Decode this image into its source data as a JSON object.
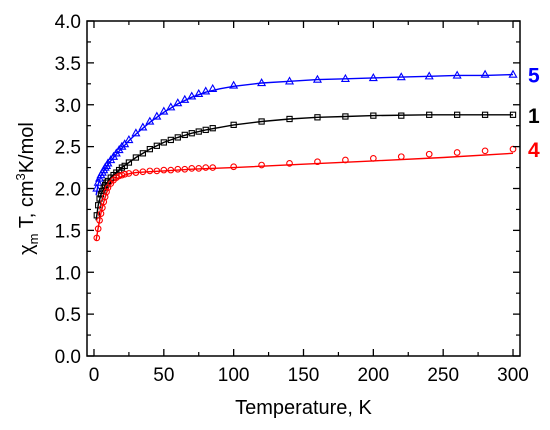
{
  "chart_data": {
    "type": "scatter",
    "xlabel": "Temperature, K",
    "ylabel": {
      "pre": "χ",
      "sub": "m",
      "mid": " T, cm",
      "sup": "3",
      "post": "K/mol"
    },
    "xlim": [
      -5,
      305
    ],
    "ylim": [
      0.0,
      4.0
    ],
    "x_ticks": [
      0,
      50,
      100,
      150,
      200,
      250,
      300
    ],
    "y_ticks": [
      "0.0",
      "0.5",
      "1.0",
      "1.5",
      "2.0",
      "2.5",
      "3.0",
      "3.5",
      "4.0"
    ],
    "grid": false,
    "series": [
      {
        "name": "5",
        "color": "#0000ff",
        "marker": "triangle",
        "points": [
          [
            2,
            2.0
          ],
          [
            3,
            2.07
          ],
          [
            4,
            2.12
          ],
          [
            5,
            2.16
          ],
          [
            6,
            2.19
          ],
          [
            7,
            2.22
          ],
          [
            8,
            2.25
          ],
          [
            9,
            2.27
          ],
          [
            10,
            2.3
          ],
          [
            12,
            2.34
          ],
          [
            14,
            2.38
          ],
          [
            16,
            2.42
          ],
          [
            18,
            2.46
          ],
          [
            20,
            2.5
          ],
          [
            22,
            2.53
          ],
          [
            25,
            2.58
          ],
          [
            30,
            2.66
          ],
          [
            35,
            2.73
          ],
          [
            40,
            2.8
          ],
          [
            45,
            2.86
          ],
          [
            50,
            2.92
          ],
          [
            55,
            2.97
          ],
          [
            60,
            3.02
          ],
          [
            65,
            3.06
          ],
          [
            70,
            3.1
          ],
          [
            75,
            3.13
          ],
          [
            80,
            3.16
          ],
          [
            85,
            3.19
          ],
          [
            100,
            3.23
          ],
          [
            120,
            3.26
          ],
          [
            140,
            3.28
          ],
          [
            160,
            3.3
          ],
          [
            180,
            3.31
          ],
          [
            200,
            3.32
          ],
          [
            220,
            3.33
          ],
          [
            240,
            3.34
          ],
          [
            260,
            3.35
          ],
          [
            280,
            3.36
          ],
          [
            300,
            3.36
          ]
        ],
        "fit": [
          [
            1.5,
            1.92
          ],
          [
            3,
            2.05
          ],
          [
            5,
            2.15
          ],
          [
            8,
            2.24
          ],
          [
            12,
            2.33
          ],
          [
            16,
            2.41
          ],
          [
            20,
            2.48
          ],
          [
            25,
            2.57
          ],
          [
            30,
            2.65
          ],
          [
            40,
            2.79
          ],
          [
            50,
            2.91
          ],
          [
            60,
            3.01
          ],
          [
            70,
            3.09
          ],
          [
            80,
            3.15
          ],
          [
            90,
            3.19
          ],
          [
            100,
            3.22
          ],
          [
            120,
            3.26
          ],
          [
            140,
            3.28
          ],
          [
            160,
            3.3
          ],
          [
            180,
            3.31
          ],
          [
            200,
            3.32
          ],
          [
            220,
            3.33
          ],
          [
            240,
            3.34
          ],
          [
            260,
            3.35
          ],
          [
            280,
            3.35
          ],
          [
            300,
            3.36
          ]
        ]
      },
      {
        "name": "1",
        "color": "#000000",
        "marker": "square",
        "points": [
          [
            2,
            1.68
          ],
          [
            3,
            1.8
          ],
          [
            4,
            1.88
          ],
          [
            5,
            1.93
          ],
          [
            6,
            1.97
          ],
          [
            7,
            2.01
          ],
          [
            8,
            2.04
          ],
          [
            9,
            2.07
          ],
          [
            10,
            2.09
          ],
          [
            12,
            2.13
          ],
          [
            14,
            2.16
          ],
          [
            16,
            2.19
          ],
          [
            18,
            2.22
          ],
          [
            20,
            2.25
          ],
          [
            22,
            2.27
          ],
          [
            25,
            2.31
          ],
          [
            30,
            2.37
          ],
          [
            35,
            2.42
          ],
          [
            40,
            2.47
          ],
          [
            45,
            2.51
          ],
          [
            50,
            2.55
          ],
          [
            55,
            2.58
          ],
          [
            60,
            2.61
          ],
          [
            65,
            2.64
          ],
          [
            70,
            2.66
          ],
          [
            75,
            2.68
          ],
          [
            80,
            2.7
          ],
          [
            85,
            2.72
          ],
          [
            100,
            2.76
          ],
          [
            120,
            2.8
          ],
          [
            140,
            2.83
          ],
          [
            160,
            2.85
          ],
          [
            180,
            2.86
          ],
          [
            200,
            2.87
          ],
          [
            220,
            2.87
          ],
          [
            240,
            2.88
          ],
          [
            260,
            2.88
          ],
          [
            280,
            2.88
          ],
          [
            300,
            2.88
          ]
        ],
        "fit": [
          [
            1.5,
            1.62
          ],
          [
            3,
            1.8
          ],
          [
            5,
            1.93
          ],
          [
            8,
            2.04
          ],
          [
            12,
            2.13
          ],
          [
            16,
            2.19
          ],
          [
            20,
            2.25
          ],
          [
            25,
            2.31
          ],
          [
            30,
            2.37
          ],
          [
            40,
            2.47
          ],
          [
            50,
            2.55
          ],
          [
            60,
            2.61
          ],
          [
            70,
            2.66
          ],
          [
            80,
            2.7
          ],
          [
            90,
            2.73
          ],
          [
            100,
            2.76
          ],
          [
            120,
            2.8
          ],
          [
            140,
            2.83
          ],
          [
            160,
            2.85
          ],
          [
            180,
            2.86
          ],
          [
            200,
            2.87
          ],
          [
            240,
            2.88
          ],
          [
            300,
            2.88
          ]
        ]
      },
      {
        "name": "4",
        "color": "#ff0000",
        "marker": "circle",
        "points": [
          [
            2,
            1.41
          ],
          [
            3,
            1.52
          ],
          [
            4,
            1.62
          ],
          [
            5,
            1.7
          ],
          [
            6,
            1.77
          ],
          [
            7,
            1.84
          ],
          [
            8,
            1.9
          ],
          [
            9,
            1.96
          ],
          [
            10,
            2.01
          ],
          [
            12,
            2.06
          ],
          [
            14,
            2.1
          ],
          [
            16,
            2.13
          ],
          [
            18,
            2.15
          ],
          [
            20,
            2.16
          ],
          [
            22,
            2.17
          ],
          [
            25,
            2.18
          ],
          [
            30,
            2.19
          ],
          [
            35,
            2.2
          ],
          [
            40,
            2.21
          ],
          [
            45,
            2.21
          ],
          [
            50,
            2.22
          ],
          [
            55,
            2.22
          ],
          [
            60,
            2.23
          ],
          [
            65,
            2.23
          ],
          [
            70,
            2.24
          ],
          [
            75,
            2.24
          ],
          [
            80,
            2.25
          ],
          [
            85,
            2.25
          ],
          [
            100,
            2.26
          ],
          [
            120,
            2.28
          ],
          [
            140,
            2.3
          ],
          [
            160,
            2.32
          ],
          [
            180,
            2.34
          ],
          [
            200,
            2.36
          ],
          [
            220,
            2.38
          ],
          [
            240,
            2.41
          ],
          [
            260,
            2.43
          ],
          [
            280,
            2.45
          ],
          [
            300,
            2.47
          ]
        ],
        "fit": [
          [
            1.5,
            1.38
          ],
          [
            3,
            1.53
          ],
          [
            5,
            1.71
          ],
          [
            7,
            1.84
          ],
          [
            9,
            1.95
          ],
          [
            11,
            2.03
          ],
          [
            14,
            2.09
          ],
          [
            18,
            2.13
          ],
          [
            22,
            2.16
          ],
          [
            26,
            2.18
          ],
          [
            30,
            2.19
          ],
          [
            40,
            2.2
          ],
          [
            50,
            2.21
          ],
          [
            70,
            2.23
          ],
          [
            100,
            2.25
          ],
          [
            150,
            2.29
          ],
          [
            200,
            2.33
          ],
          [
            250,
            2.37
          ],
          [
            300,
            2.42
          ]
        ]
      }
    ]
  }
}
